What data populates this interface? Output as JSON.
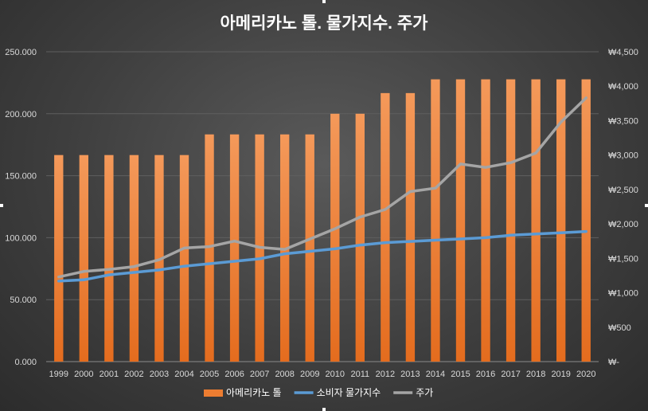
{
  "chart_data": {
    "type": "bar+line",
    "title": "아메리카노 톨. 물가지수. 주가",
    "categories": [
      "1999",
      "2000",
      "2001",
      "2002",
      "2003",
      "2004",
      "2005",
      "2006",
      "2007",
      "2008",
      "2009",
      "2010",
      "2011",
      "2012",
      "2013",
      "2014",
      "2015",
      "2016",
      "2017",
      "2018",
      "2019",
      "2020"
    ],
    "left_axis": {
      "ylim": [
        0,
        250
      ],
      "ticks": [
        0,
        50,
        100,
        150,
        200,
        250
      ],
      "tick_labels": [
        "0.000",
        "50.000",
        "100.000",
        "150.000",
        "200.000",
        "250.000"
      ]
    },
    "right_axis": {
      "ylim": [
        0,
        4500
      ],
      "ticks": [
        0,
        500,
        1000,
        1500,
        2000,
        2500,
        3000,
        3500,
        4000,
        4500
      ],
      "tick_labels": [
        "₩-",
        "₩500",
        "₩1,000",
        "₩1,500",
        "₩2,000",
        "₩2,500",
        "₩3,000",
        "₩3,500",
        "₩4,000",
        "₩4,500"
      ]
    },
    "series": [
      {
        "name": "아메리카노 톨",
        "type": "bar",
        "axis": "right",
        "color": "#ED7D31",
        "values": [
          3000,
          3000,
          3000,
          3000,
          3000,
          3000,
          3300,
          3300,
          3300,
          3300,
          3300,
          3600,
          3600,
          3900,
          3900,
          4100,
          4100,
          4100,
          4100,
          4100,
          4100,
          4100
        ]
      },
      {
        "name": "소비자 물가지수",
        "type": "line",
        "axis": "left",
        "color": "#5B9BD5",
        "values": [
          65,
          66,
          70,
          72,
          74,
          77,
          79,
          81,
          83,
          87,
          89,
          91,
          94,
          96,
          97,
          98,
          99,
          100,
          102,
          103,
          104,
          105
        ]
      },
      {
        "name": "주가",
        "type": "line",
        "axis": "right",
        "color": "#A5A5A5",
        "values": [
          1230,
          1310,
          1340,
          1380,
          1480,
          1650,
          1670,
          1750,
          1660,
          1630,
          1780,
          1930,
          2100,
          2210,
          2470,
          2520,
          2870,
          2820,
          2890,
          3030,
          3480,
          3830
        ]
      }
    ],
    "legend_position": "bottom",
    "grid": true
  }
}
